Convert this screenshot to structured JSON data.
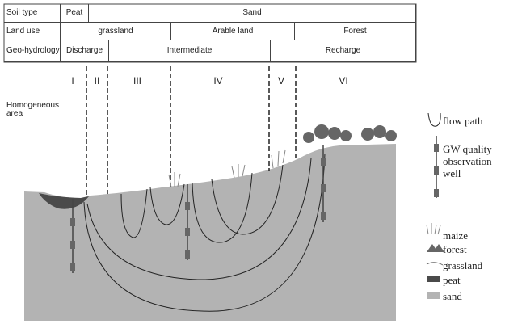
{
  "table": {
    "rows": [
      [
        "Soil type",
        "Peat",
        "Sand"
      ],
      [
        "Land use",
        "grassland",
        "Arable land",
        "Forest"
      ],
      [
        "Geo-hydrology",
        "Discharge",
        "Intermediate",
        "Recharge"
      ]
    ]
  },
  "zones": [
    "I",
    "II",
    "III",
    "IV",
    "V",
    "VI"
  ],
  "area_label": "Homogeneous area",
  "legend": [
    "flow path",
    "GW quality observation well",
    "maize",
    "forest",
    "grassland",
    "peat",
    "sand"
  ]
}
